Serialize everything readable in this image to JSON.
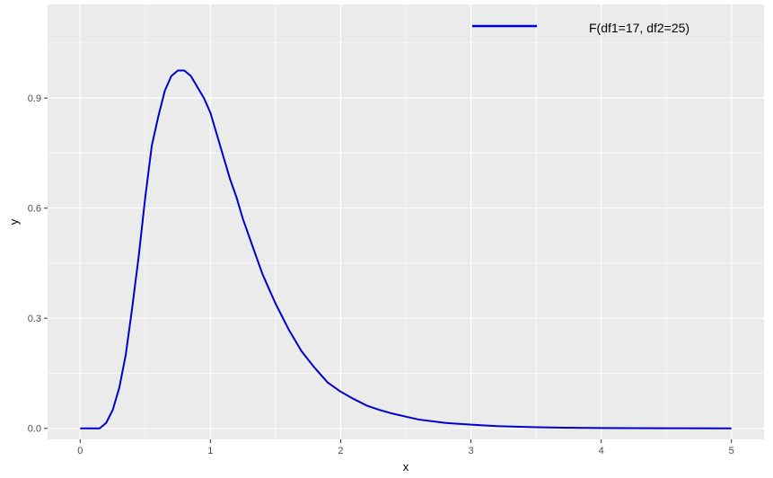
{
  "chart_data": {
    "type": "line",
    "title": "",
    "xlabel": "x",
    "ylabel": "y",
    "xlim": [
      -0.25,
      5.25
    ],
    "ylim": [
      -0.03,
      1.155
    ],
    "x_ticks": [
      0,
      1,
      2,
      3,
      4,
      5
    ],
    "x_tick_labels": [
      "0",
      "1",
      "2",
      "3",
      "4",
      "5"
    ],
    "y_ticks": [
      0.0,
      0.3,
      0.6,
      0.9
    ],
    "y_tick_labels": [
      "0.0",
      "0.3",
      "0.6",
      "0.9"
    ],
    "grid": true,
    "legend_position": "top-right",
    "colors": {
      "panel": "#ebebeb",
      "grid": "#ffffff",
      "line": "#0000cd"
    },
    "series": [
      {
        "name": "F(df1=17, df2=25)",
        "x": [
          0,
          0.15,
          0.2,
          0.25,
          0.3,
          0.35,
          0.4,
          0.45,
          0.5,
          0.55,
          0.6,
          0.65,
          0.7,
          0.75,
          0.8,
          0.85,
          0.9,
          0.95,
          1.0,
          1.05,
          1.1,
          1.15,
          1.2,
          1.25,
          1.3,
          1.35,
          1.4,
          1.45,
          1.5,
          1.6,
          1.7,
          1.8,
          1.9,
          2.0,
          2.1,
          2.2,
          2.3,
          2.4,
          2.5,
          2.6,
          2.8,
          3.0,
          3.2,
          3.5,
          3.8,
          4.0,
          4.5,
          5.0
        ],
        "values": [
          0,
          0,
          0.015,
          0.05,
          0.11,
          0.2,
          0.33,
          0.47,
          0.63,
          0.77,
          0.85,
          0.92,
          0.96,
          0.975,
          0.975,
          0.96,
          0.93,
          0.9,
          0.86,
          0.8,
          0.74,
          0.68,
          0.63,
          0.57,
          0.52,
          0.47,
          0.42,
          0.38,
          0.34,
          0.27,
          0.21,
          0.165,
          0.125,
          0.1,
          0.08,
          0.062,
          0.05,
          0.04,
          0.032,
          0.024,
          0.015,
          0.01,
          0.006,
          0.003,
          0.0015,
          0.001,
          0.0004,
          0.0001
        ]
      }
    ]
  }
}
